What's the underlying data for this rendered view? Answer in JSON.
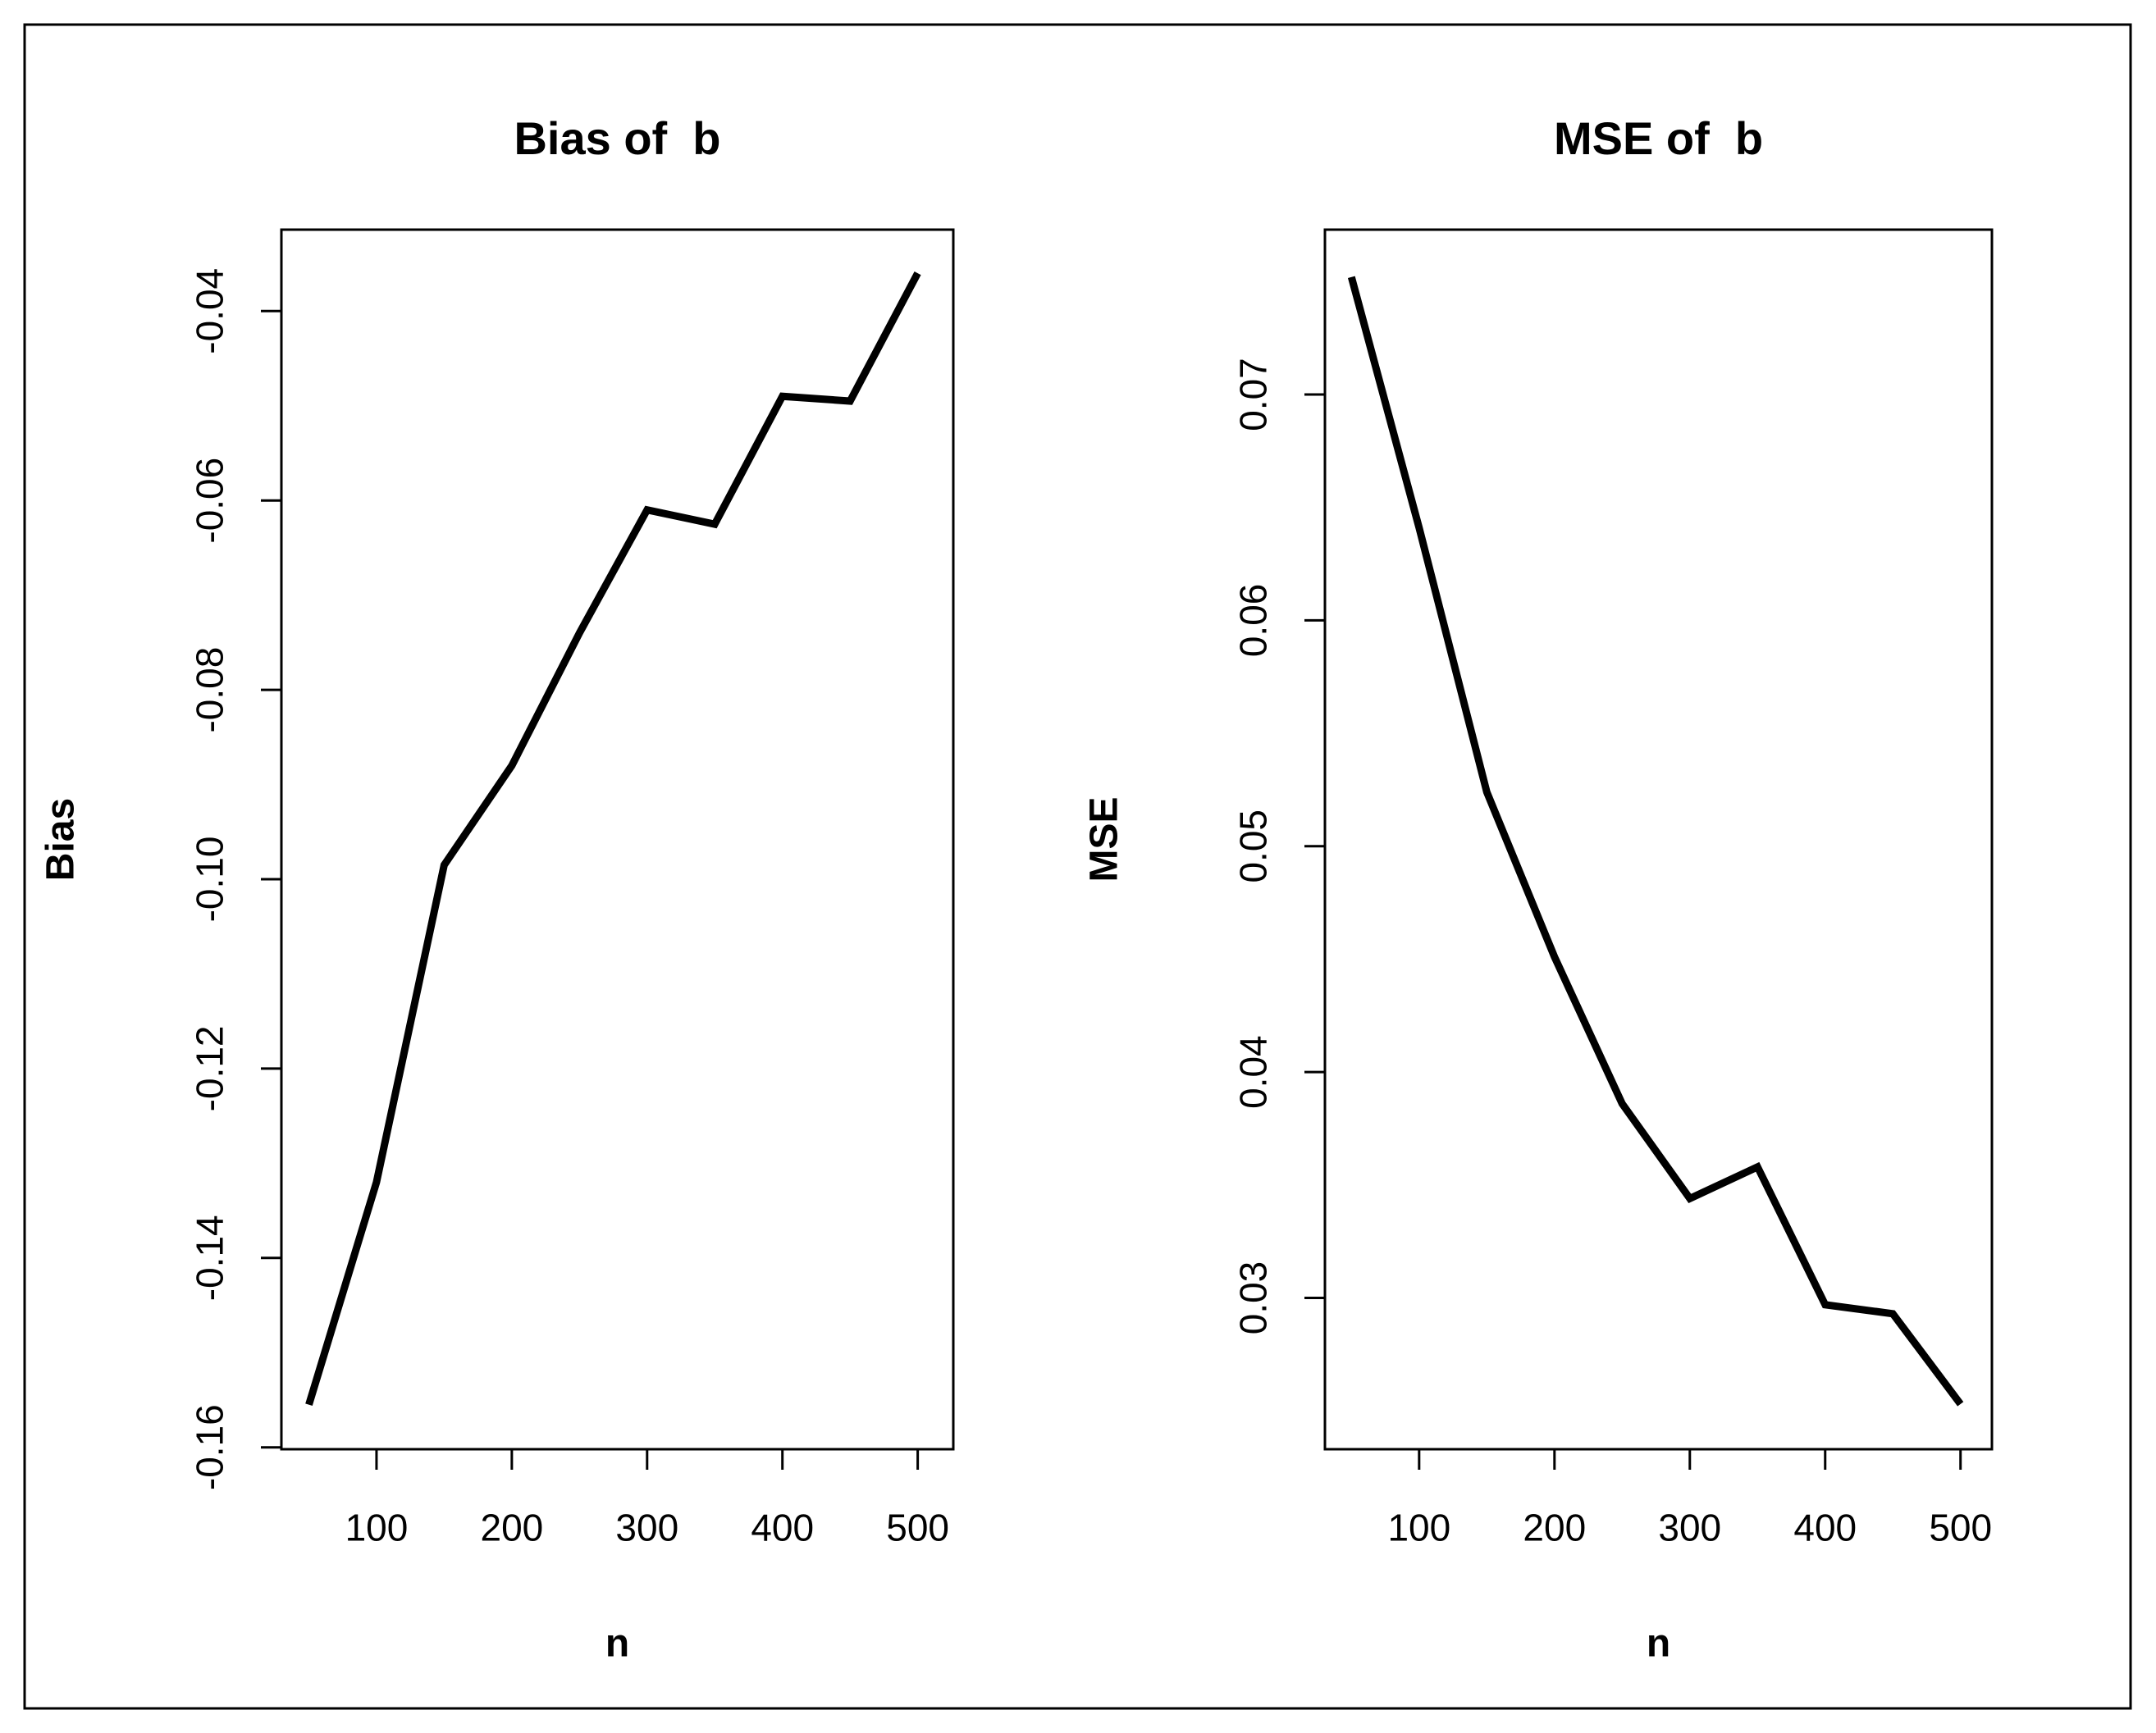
{
  "figure": {
    "background": "#ffffff",
    "outer_border_color": "#000000",
    "line_color": "#000000",
    "text_color": "#000000"
  },
  "chart_data": [
    {
      "type": "line",
      "title": "Bias of  b",
      "xlabel": "n",
      "ylabel": "Bias",
      "x": [
        50,
        100,
        150,
        200,
        250,
        300,
        350,
        400,
        450,
        500
      ],
      "y": [
        -0.1555,
        -0.132,
        -0.0985,
        -0.088,
        -0.074,
        -0.061,
        -0.0625,
        -0.049,
        -0.0495,
        -0.036
      ],
      "xticks": [
        100,
        200,
        300,
        400,
        500
      ],
      "xtick_labels": [
        "100",
        "200",
        "300",
        "400",
        "500"
      ],
      "yticks": [
        -0.16,
        -0.14,
        -0.12,
        -0.1,
        -0.08,
        -0.06,
        -0.04
      ],
      "ytick_labels": [
        "-0.16",
        "-0.14",
        "-0.12",
        "-0.10",
        "-0.08",
        "-0.06",
        "-0.04"
      ],
      "xlim": [
        29.7,
        526.3
      ],
      "ylim": [
        -0.1602,
        -0.0314
      ],
      "grid": false,
      "legend": null
    },
    {
      "type": "line",
      "title": "MSE of  b",
      "xlabel": "n",
      "ylabel": "MSE",
      "x": [
        50,
        100,
        150,
        200,
        250,
        300,
        350,
        400,
        450,
        500
      ],
      "y": [
        0.0752,
        0.0641,
        0.0524,
        0.0451,
        0.0386,
        0.0344,
        0.0358,
        0.0297,
        0.0293,
        0.0253
      ],
      "xticks": [
        100,
        200,
        300,
        400,
        500
      ],
      "xtick_labels": [
        "100",
        "200",
        "300",
        "400",
        "500"
      ],
      "yticks": [
        0.03,
        0.04,
        0.05,
        0.06,
        0.07
      ],
      "ytick_labels": [
        "0.03",
        "0.04",
        "0.05",
        "0.06",
        "0.07"
      ],
      "xlim": [
        30.4,
        523.2
      ],
      "ylim": [
        0.0233,
        0.0773
      ],
      "grid": false,
      "legend": null
    }
  ]
}
